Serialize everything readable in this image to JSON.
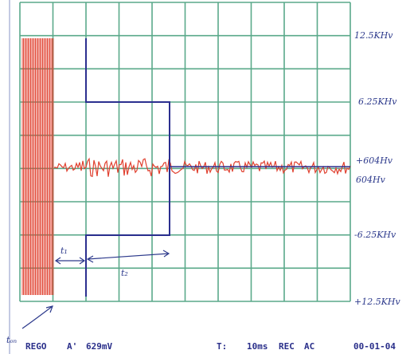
{
  "scale_labels": [
    "12.5KHv",
    "6.25KHv",
    "+604Hv",
    "604Hv",
    "-6.25KHv",
    "+12.5KHv"
  ],
  "annotations": {
    "t1": "t₁",
    "t2": "t₂",
    "ton": "tₒₙ"
  },
  "status_bar": [
    "REGO",
    "A'",
    "629mV",
    "T:",
    "10ms",
    "REC",
    "AC",
    "00-01-04"
  ]
}
